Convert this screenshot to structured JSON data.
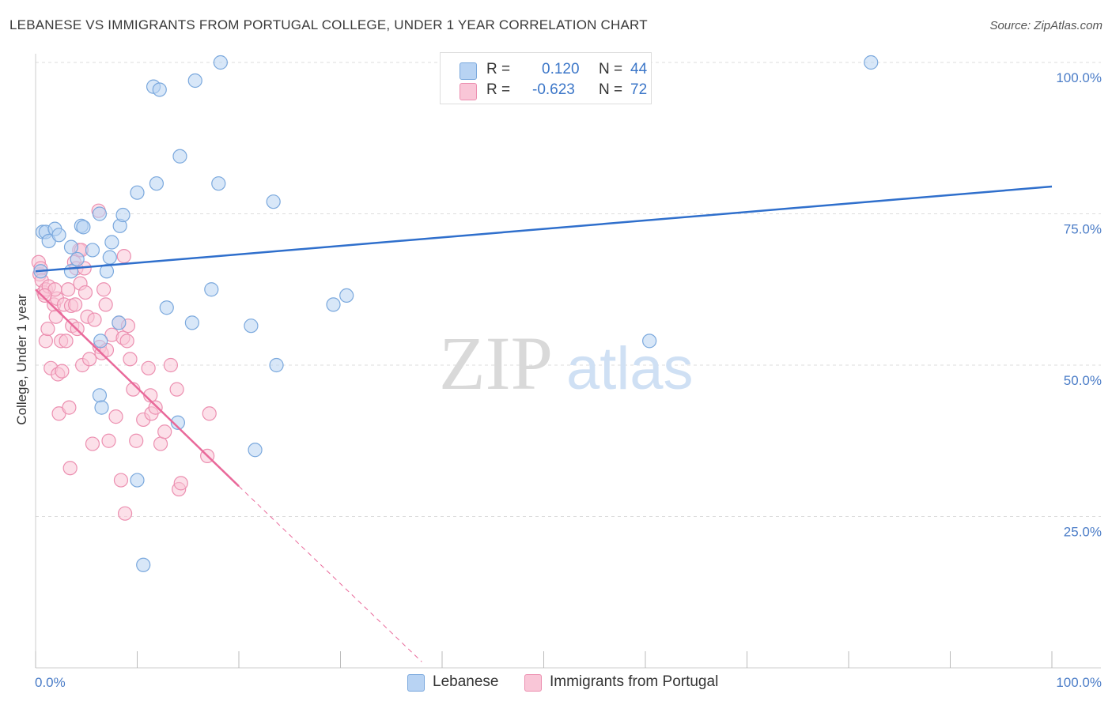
{
  "title": "LEBANESE VS IMMIGRANTS FROM PORTUGAL COLLEGE, UNDER 1 YEAR CORRELATION CHART",
  "source": "Source: ZipAtlas.com",
  "watermark": {
    "zip": "ZIP",
    "atlas": "atlas"
  },
  "legend": {
    "r_label": "R =",
    "n_label": "N =",
    "series": [
      {
        "r": "0.120",
        "n": "44"
      },
      {
        "r": "-0.623",
        "n": "72"
      }
    ]
  },
  "bottom_legend": [
    "Lebanese",
    "Immigrants from Portugal"
  ],
  "colors": {
    "blue_fill": "#b8d3f3",
    "blue_stroke": "#7aa8dd",
    "blue_line": "#2f6fcc",
    "pink_fill": "#f9c6d7",
    "pink_stroke": "#ec8fb0",
    "pink_line": "#e9699a",
    "grid": "#dddddd",
    "tick_text": "#4a7cc7"
  },
  "chart_data": {
    "type": "scatter",
    "title": "LEBANESE VS IMMIGRANTS FROM PORTUGAL COLLEGE, UNDER 1 YEAR CORRELATION CHART",
    "xlabel": "",
    "ylabel": "College, Under 1 year",
    "xlim": [
      0,
      100
    ],
    "ylim": [
      0,
      100
    ],
    "x_ticks": [
      "0.0%",
      "100.0%"
    ],
    "y_ticks": [
      {
        "value": 25,
        "label": "25.0%"
      },
      {
        "value": 50,
        "label": "50.0%"
      },
      {
        "value": 75,
        "label": "75.0%"
      },
      {
        "value": 100,
        "label": "100.0%"
      }
    ],
    "series": [
      {
        "name": "Lebanese",
        "r": 0.12,
        "n": 44,
        "trend": {
          "x0": 0,
          "y0": 65.5,
          "x1": 100,
          "y1": 79.5
        },
        "points": [
          [
            0.5,
            65.5
          ],
          [
            0.7,
            72.0
          ],
          [
            1.0,
            72.0
          ],
          [
            1.3,
            70.5
          ],
          [
            1.9,
            72.5
          ],
          [
            2.3,
            71.5
          ],
          [
            3.5,
            65.5
          ],
          [
            3.5,
            69.5
          ],
          [
            4.1,
            67.5
          ],
          [
            4.5,
            73.0
          ],
          [
            4.7,
            72.8
          ],
          [
            5.6,
            69.0
          ],
          [
            6.3,
            75.0
          ],
          [
            7.3,
            67.8
          ],
          [
            7.5,
            70.3
          ],
          [
            8.3,
            73.0
          ],
          [
            8.6,
            74.8
          ],
          [
            10.0,
            78.5
          ],
          [
            11.6,
            96.0
          ],
          [
            12.2,
            95.5
          ],
          [
            11.9,
            80.0
          ],
          [
            14.2,
            84.5
          ],
          [
            15.7,
            97.0
          ],
          [
            18.2,
            100.0
          ],
          [
            18.0,
            80.0
          ],
          [
            6.4,
            54.0
          ],
          [
            8.2,
            57.0
          ],
          [
            6.3,
            45.0
          ],
          [
            6.5,
            43.0
          ],
          [
            12.9,
            59.5
          ],
          [
            15.4,
            57.0
          ],
          [
            17.3,
            62.5
          ],
          [
            21.2,
            56.5
          ],
          [
            23.7,
            50.0
          ],
          [
            23.4,
            77.0
          ],
          [
            14.0,
            40.5
          ],
          [
            10.0,
            31.0
          ],
          [
            21.6,
            36.0
          ],
          [
            10.6,
            17.0
          ],
          [
            29.3,
            60.0
          ],
          [
            30.6,
            61.5
          ],
          [
            60.4,
            54.0
          ],
          [
            82.2,
            100.0
          ],
          [
            7.0,
            65.5
          ]
        ]
      },
      {
        "name": "Immigrants from Portugal",
        "r": -0.623,
        "n": 72,
        "trend": {
          "x0": 0,
          "y0": 62.5,
          "x1": 20.0,
          "y1": 30.0
        },
        "trend_dashed": {
          "x0": 20.0,
          "y0": 30.0,
          "x1": 38.0,
          "y1": 1.0
        },
        "points": [
          [
            0.3,
            67.0
          ],
          [
            0.4,
            65.0
          ],
          [
            0.5,
            66.0
          ],
          [
            0.6,
            64.0
          ],
          [
            0.8,
            62.0
          ],
          [
            1.0,
            62.5
          ],
          [
            1.3,
            63.0
          ],
          [
            1.0,
            54.0
          ],
          [
            1.2,
            56.0
          ],
          [
            1.5,
            49.5
          ],
          [
            1.8,
            60.0
          ],
          [
            2.0,
            58.0
          ],
          [
            2.1,
            61.0
          ],
          [
            2.2,
            48.5
          ],
          [
            2.3,
            42.0
          ],
          [
            2.5,
            54.0
          ],
          [
            2.6,
            49.0
          ],
          [
            2.8,
            60.0
          ],
          [
            3.0,
            54.0
          ],
          [
            3.2,
            62.5
          ],
          [
            3.3,
            43.0
          ],
          [
            3.4,
            33.0
          ],
          [
            3.5,
            59.8
          ],
          [
            3.6,
            56.5
          ],
          [
            3.8,
            67.0
          ],
          [
            3.9,
            60.0
          ],
          [
            4.0,
            66.0
          ],
          [
            4.1,
            56.0
          ],
          [
            4.3,
            69.0
          ],
          [
            4.4,
            63.5
          ],
          [
            4.6,
            50.0
          ],
          [
            4.8,
            66.0
          ],
          [
            4.9,
            62.0
          ],
          [
            5.1,
            58.0
          ],
          [
            5.3,
            51.0
          ],
          [
            5.6,
            37.0
          ],
          [
            5.8,
            57.5
          ],
          [
            6.2,
            75.5
          ],
          [
            6.3,
            53.0
          ],
          [
            6.5,
            52.0
          ],
          [
            6.7,
            62.5
          ],
          [
            6.9,
            60.0
          ],
          [
            7.2,
            37.5
          ],
          [
            7.5,
            55.0
          ],
          [
            7.9,
            41.5
          ],
          [
            8.2,
            57.0
          ],
          [
            8.4,
            31.0
          ],
          [
            8.6,
            54.5
          ],
          [
            8.8,
            25.5
          ],
          [
            8.7,
            68.0
          ],
          [
            9.0,
            54.0
          ],
          [
            9.1,
            56.5
          ],
          [
            9.3,
            51.0
          ],
          [
            9.6,
            46.0
          ],
          [
            9.9,
            37.5
          ],
          [
            10.6,
            41.0
          ],
          [
            11.1,
            49.5
          ],
          [
            11.3,
            45.0
          ],
          [
            11.4,
            42.0
          ],
          [
            11.8,
            43.0
          ],
          [
            12.3,
            37.0
          ],
          [
            12.7,
            39.0
          ],
          [
            13.3,
            50.0
          ],
          [
            13.9,
            46.0
          ],
          [
            14.1,
            29.5
          ],
          [
            14.3,
            30.5
          ],
          [
            16.9,
            35.0
          ],
          [
            17.1,
            42.0
          ],
          [
            1.9,
            62.5
          ],
          [
            0.9,
            61.5
          ],
          [
            7.0,
            52.5
          ],
          [
            4.5,
            69.0
          ]
        ]
      }
    ]
  }
}
